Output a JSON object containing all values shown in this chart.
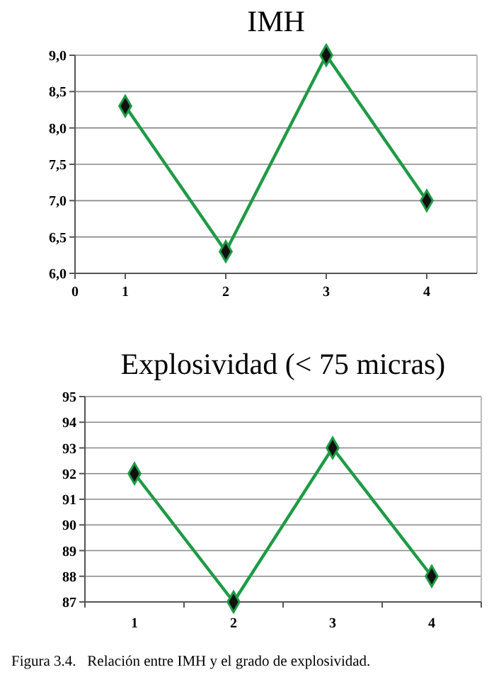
{
  "chart_data": [
    {
      "type": "line",
      "title": "IMH",
      "x": [
        1,
        2,
        3,
        4
      ],
      "xlim": [
        0.5,
        4.5
      ],
      "xticks": [
        {
          "value": 0.5,
          "label": "0"
        },
        1,
        2,
        3,
        4
      ],
      "ylim": [
        6,
        9
      ],
      "yticks": [
        {
          "value": 6,
          "label": "6,0"
        },
        {
          "value": 6.5,
          "label": "6,5"
        },
        {
          "value": 7,
          "label": "7,0"
        },
        {
          "value": 7.5,
          "label": "7,5"
        },
        {
          "value": 8,
          "label": "8,0"
        },
        {
          "value": 8.5,
          "label": "8,5"
        },
        {
          "value": 9,
          "label": "9,0"
        }
      ],
      "grid": "y",
      "marker": "diamond",
      "line_style": "solid",
      "series": [
        {
          "color": "#1f9a45",
          "values": [
            8.3,
            6.3,
            9.0,
            7.0
          ]
        }
      ]
    },
    {
      "type": "line",
      "title": "Explosividad (< 75 micras)",
      "categories": [
        "1",
        "2",
        "3",
        "4"
      ],
      "ylim": [
        87,
        95
      ],
      "yticks": [
        87,
        88,
        89,
        90,
        91,
        92,
        93,
        94,
        95
      ],
      "grid": "y",
      "marker": "diamond",
      "line_style": "solid",
      "annotations": [
        "Figura 3.4.   Relación entre IMH y el grado de explosividad."
      ],
      "series": [
        {
          "color": "#1f9a45",
          "values": [
            92,
            87,
            93,
            88
          ]
        }
      ]
    }
  ]
}
